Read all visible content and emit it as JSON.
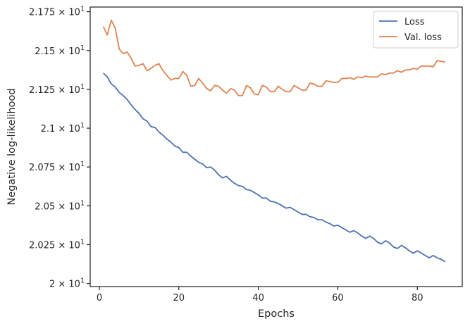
{
  "chart_data": {
    "type": "line",
    "xlabel": "Epochs",
    "ylabel": "Negative log-likelihood",
    "xlim": [
      -2.3,
      91.3
    ],
    "ylim": [
      19.98,
      21.78
    ],
    "x_ticks": [
      0,
      20,
      40,
      60,
      80
    ],
    "x_tick_labels": [
      "0",
      "20",
      "40",
      "60",
      "80"
    ],
    "y_ticks": [
      20.0,
      20.25,
      20.5,
      20.75,
      21.0,
      21.25,
      21.5,
      21.75
    ],
    "y_tick_labels": [
      {
        "mantissa": "2",
        "exponent": "1"
      },
      {
        "mantissa": "2.025",
        "exponent": "1"
      },
      {
        "mantissa": "2.05",
        "exponent": "1"
      },
      {
        "mantissa": "2.075",
        "exponent": "1"
      },
      {
        "mantissa": "2.1",
        "exponent": "1"
      },
      {
        "mantissa": "2.125",
        "exponent": "1"
      },
      {
        "mantissa": "2.15",
        "exponent": "1"
      },
      {
        "mantissa": "2.175",
        "exponent": "1"
      }
    ],
    "y_tick_base": "10",
    "grid": false,
    "legend_position": "top-right",
    "series": [
      {
        "name": "Loss",
        "color": "#4c72b0",
        "x": [
          1,
          2,
          3,
          4,
          5,
          6,
          7,
          8,
          9,
          10,
          11,
          12,
          13,
          14,
          15,
          16,
          17,
          18,
          19,
          20,
          21,
          22,
          23,
          24,
          25,
          26,
          27,
          28,
          29,
          30,
          31,
          32,
          33,
          34,
          35,
          36,
          37,
          38,
          39,
          40,
          41,
          42,
          43,
          44,
          45,
          46,
          47,
          48,
          49,
          50,
          51,
          52,
          53,
          54,
          55,
          56,
          57,
          58,
          59,
          60,
          61,
          62,
          63,
          64,
          65,
          66,
          67,
          68,
          69,
          70,
          71,
          72,
          73,
          74,
          75,
          76,
          77,
          78,
          79,
          80,
          81,
          82,
          83,
          84,
          85,
          86,
          87
        ],
        "values": [
          21.355,
          21.33,
          21.285,
          21.265,
          21.23,
          21.21,
          21.185,
          21.15,
          21.12,
          21.095,
          21.06,
          21.045,
          21.01,
          21.005,
          20.975,
          20.955,
          20.93,
          20.91,
          20.885,
          20.875,
          20.845,
          20.845,
          20.82,
          20.8,
          20.78,
          20.77,
          20.745,
          20.75,
          20.73,
          20.7,
          20.68,
          20.69,
          20.665,
          20.645,
          20.63,
          20.625,
          20.605,
          20.6,
          20.585,
          20.57,
          20.55,
          20.55,
          20.53,
          20.525,
          20.515,
          20.5,
          20.485,
          20.49,
          20.475,
          20.46,
          20.445,
          20.445,
          20.43,
          20.425,
          20.41,
          20.41,
          20.395,
          20.385,
          20.37,
          20.375,
          20.36,
          20.345,
          20.33,
          20.34,
          20.325,
          20.305,
          20.29,
          20.305,
          20.29,
          20.265,
          20.255,
          20.275,
          20.26,
          20.235,
          20.225,
          20.245,
          20.23,
          20.21,
          20.195,
          20.21,
          20.195,
          20.18,
          20.165,
          20.18,
          20.165,
          20.155,
          20.14
        ]
      },
      {
        "name": "Val. loss",
        "color": "#dd8452",
        "x": [
          1,
          2,
          3,
          4,
          5,
          6,
          7,
          8,
          9,
          10,
          11,
          12,
          13,
          14,
          15,
          16,
          17,
          18,
          19,
          20,
          21,
          22,
          23,
          24,
          25,
          26,
          27,
          28,
          29,
          30,
          31,
          32,
          33,
          34,
          35,
          36,
          37,
          38,
          39,
          40,
          41,
          42,
          43,
          44,
          45,
          46,
          47,
          48,
          49,
          50,
          51,
          52,
          53,
          54,
          55,
          56,
          57,
          58,
          59,
          60,
          61,
          62,
          63,
          64,
          65,
          66,
          67,
          68,
          69,
          70,
          71,
          72,
          73,
          74,
          75,
          76,
          77,
          78,
          79,
          80,
          81,
          82,
          83,
          84,
          85,
          86,
          87
        ],
        "values": [
          21.655,
          21.6,
          21.695,
          21.645,
          21.51,
          21.48,
          21.49,
          21.45,
          21.4,
          21.405,
          21.415,
          21.37,
          21.385,
          21.405,
          21.415,
          21.37,
          21.34,
          21.31,
          21.32,
          21.32,
          21.365,
          21.34,
          21.27,
          21.275,
          21.32,
          21.29,
          21.255,
          21.24,
          21.275,
          21.27,
          21.245,
          21.225,
          21.255,
          21.245,
          21.21,
          21.21,
          21.275,
          21.26,
          21.22,
          21.215,
          21.275,
          21.265,
          21.235,
          21.235,
          21.27,
          21.25,
          21.235,
          21.235,
          21.275,
          21.26,
          21.245,
          21.245,
          21.29,
          21.285,
          21.27,
          21.27,
          21.305,
          21.3,
          21.295,
          21.295,
          21.32,
          21.32,
          21.325,
          21.315,
          21.33,
          21.325,
          21.335,
          21.33,
          21.33,
          21.33,
          21.35,
          21.345,
          21.355,
          21.355,
          21.37,
          21.36,
          21.375,
          21.375,
          21.385,
          21.38,
          21.4,
          21.4,
          21.4,
          21.395,
          21.435,
          21.43,
          21.425
        ]
      }
    ]
  }
}
